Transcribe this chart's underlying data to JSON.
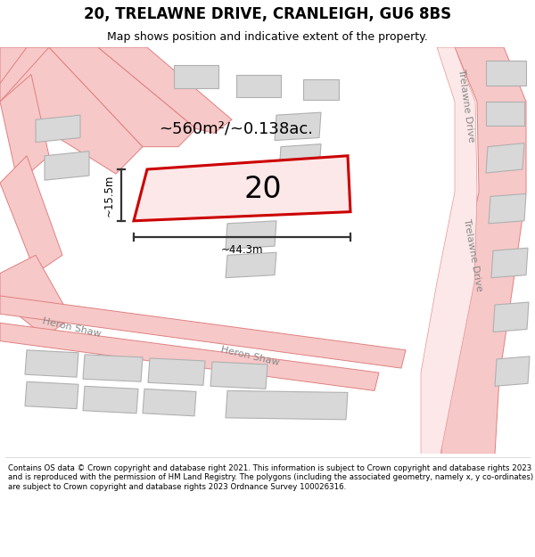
{
  "title": "20, TRELAWNE DRIVE, CRANLEIGH, GU6 8BS",
  "subtitle": "Map shows position and indicative extent of the property.",
  "footer": "Contains OS data © Crown copyright and database right 2021. This information is subject to Crown copyright and database rights 2023 and is reproduced with the permission of HM Land Registry. The polygons (including the associated geometry, namely x, y co-ordinates) are subject to Crown copyright and database rights 2023 Ordnance Survey 100026316.",
  "map_bg": "#ffffff",
  "road_fill": "#f7c8c8",
  "road_edge": "#e08080",
  "bld_fill": "#d8d8d8",
  "bld_edge": "#b0b0b0",
  "prop_fill": "#fce8e8",
  "prop_edge": "#cc0000",
  "prop_lw": 2.2,
  "dim_color": "#333333",
  "label_color": "#888888",
  "area_text": "~560m²/~0.138ac.",
  "prop_number": "20",
  "width_label": "~44.3m",
  "height_label": "~15.5m",
  "trelawne_label": "Trelawne Drive",
  "heron_shaw_label": "Heron Shaw",
  "title_fontsize": 12,
  "subtitle_fontsize": 9,
  "footer_fontsize": 6.2
}
